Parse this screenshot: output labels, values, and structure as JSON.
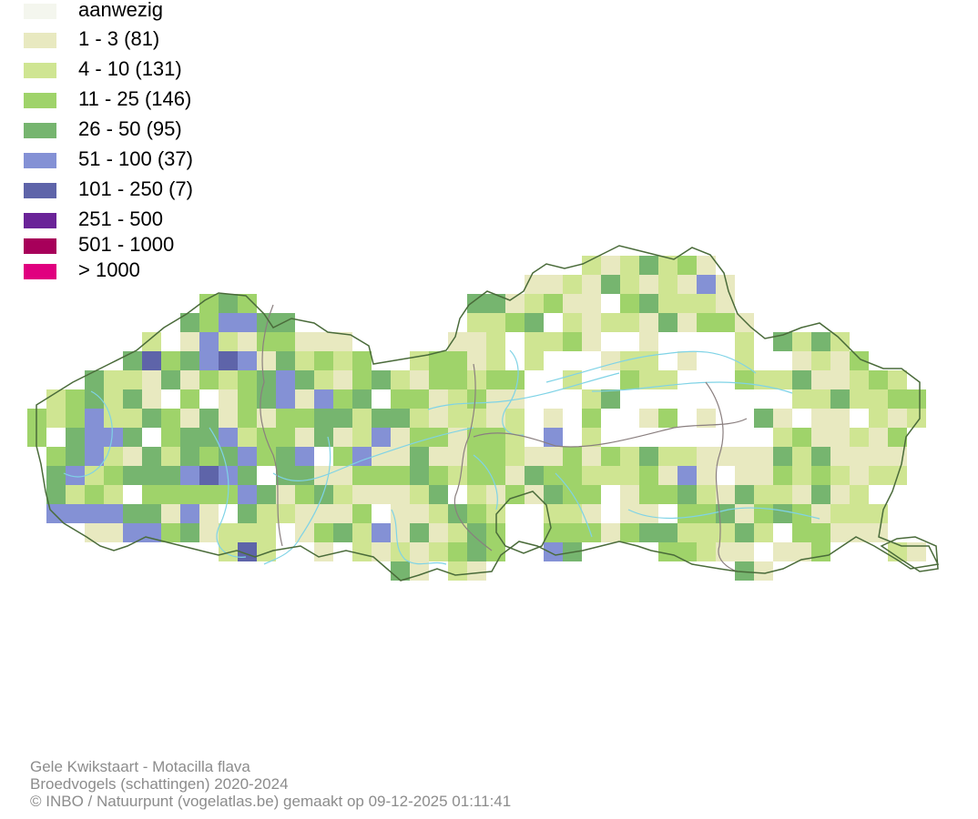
{
  "legend": {
    "items": [
      {
        "label": "aanwezig",
        "color": "#f4f6ee"
      },
      {
        "label": "1 - 3 (81)",
        "color": "#e8e9c0"
      },
      {
        "label": "4 - 10 (131)",
        "color": "#cfe592"
      },
      {
        "label": "11 - 25 (146)",
        "color": "#9fd36a"
      },
      {
        "label": "26 - 50 (95)",
        "color": "#76b56f"
      },
      {
        "label": "51 - 100 (37)",
        "color": "#8491d5"
      },
      {
        "label": "101 - 250 (7)",
        "color": "#5e64a9"
      },
      {
        "label": "251 - 500",
        "color": "#6a2398"
      },
      {
        "label": "501 - 1000",
        "color": "#a7005a"
      },
      {
        "label": "> 1000",
        "color": "#e0007f"
      }
    ]
  },
  "map": {
    "boundary_color": "#4a6b3a",
    "province_border_color": "#8a7f7f",
    "river_color": "#7fd3e6"
  },
  "caption": {
    "species": "Gele Kwikstaart - Motacilla flava",
    "dataset": "Broedvogels (schattingen) 2020-2024",
    "credit": "© INBO / Natuurpunt (vogelatlas.be) gemaakt op 09-12-2025 01:11:41"
  }
}
